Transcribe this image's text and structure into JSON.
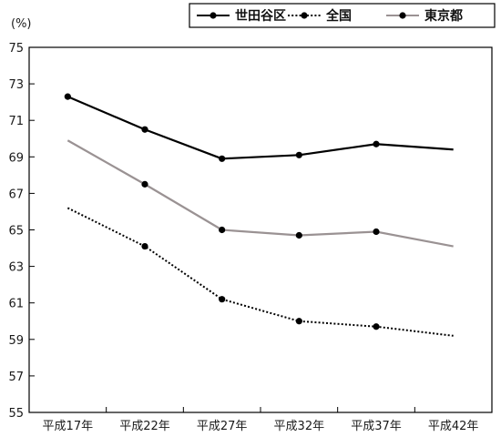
{
  "chart_data": {
    "type": "line",
    "title": "",
    "xlabel": "",
    "ylabel": "",
    "y_unit": "(%)",
    "categories": [
      "平成17年",
      "平成22年",
      "平成27年",
      "平成32年",
      "平成37年",
      "平成42年"
    ],
    "ylim": [
      55,
      75
    ],
    "yticks": [
      "55",
      "57",
      "59",
      "61",
      "63",
      "65",
      "67",
      "69",
      "71",
      "73",
      "75"
    ],
    "grid": false,
    "legend_position": "top-right",
    "series": [
      {
        "name": "世田谷区",
        "values": [
          72.3,
          70.5,
          68.9,
          69.1,
          69.7,
          69.4
        ],
        "color": "#000000",
        "style": "solid",
        "markers": [
          true,
          true,
          true,
          true,
          true,
          false
        ]
      },
      {
        "name": "全国",
        "values": [
          66.2,
          64.1,
          61.2,
          60.0,
          59.7,
          59.2
        ],
        "color": "#000000",
        "style": "dotted",
        "markers": [
          false,
          true,
          true,
          true,
          true,
          false
        ]
      },
      {
        "name": "東京都",
        "values": [
          69.9,
          67.5,
          65.0,
          64.7,
          64.9,
          64.1
        ],
        "color": "#9a9293",
        "style": "solid",
        "markers": [
          false,
          true,
          true,
          true,
          true,
          false
        ]
      }
    ]
  }
}
